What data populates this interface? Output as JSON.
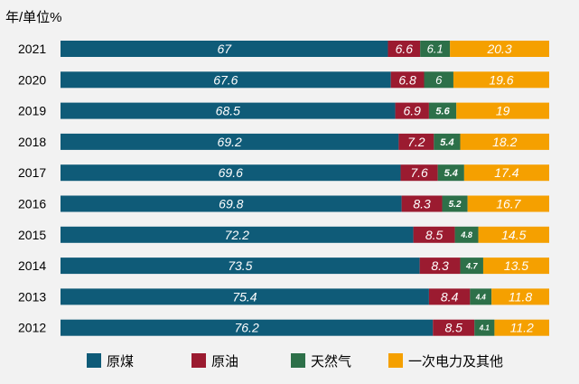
{
  "unit_label": "年/单位%",
  "chart_data": {
    "type": "bar",
    "orientation": "horizontal",
    "stacked": "100%",
    "title": "",
    "xlabel": "",
    "ylabel": "",
    "categories": [
      "2021",
      "2020",
      "2019",
      "2018",
      "2017",
      "2016",
      "2015",
      "2014",
      "2013",
      "2012"
    ],
    "series": [
      {
        "name": "原煤",
        "color": "#0f5b78",
        "values": [
          67,
          67.6,
          68.5,
          69.2,
          69.6,
          69.8,
          72.2,
          73.5,
          75.4,
          76.2
        ]
      },
      {
        "name": "原油",
        "color": "#9b1b30",
        "values": [
          6.6,
          6.8,
          6.9,
          7.2,
          7.6,
          8.3,
          8.5,
          8.3,
          8.4,
          8.5
        ]
      },
      {
        "name": "天然气",
        "color": "#2d7049",
        "values": [
          6.1,
          6,
          5.6,
          5.4,
          5.4,
          5.2,
          4.8,
          4.7,
          4.4,
          4.1
        ]
      },
      {
        "name": "一次电力及其他",
        "color": "#f5a000",
        "values": [
          20.3,
          19.6,
          19,
          18.2,
          17.4,
          16.7,
          14.5,
          13.5,
          11.8,
          11.2
        ]
      }
    ],
    "grid": false,
    "legend_position": "bottom"
  }
}
